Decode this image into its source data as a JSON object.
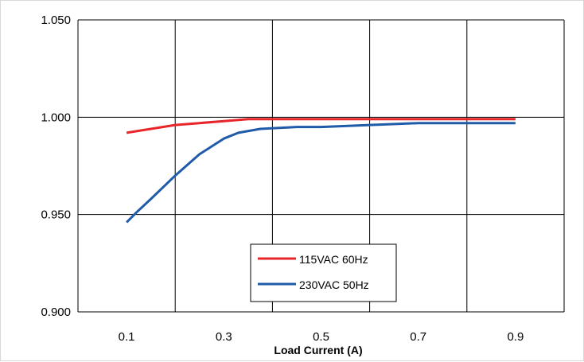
{
  "chart_data": {
    "type": "line",
    "title": "",
    "xlabel": "Load Current (A)",
    "ylabel": "",
    "xlim": [
      0,
      1.0
    ],
    "ylim": [
      0.9,
      1.05
    ],
    "x_ticks": [
      0.1,
      0.3,
      0.5,
      0.7,
      0.9
    ],
    "x_tick_labels": [
      "0.1",
      "0.3",
      "0.5",
      "0.7",
      "0.9"
    ],
    "x_gridlines": [
      0.2,
      0.4,
      0.6,
      0.8
    ],
    "y_ticks": [
      0.9,
      0.95,
      1.0,
      1.05
    ],
    "y_tick_labels": [
      "0.900",
      "0.950",
      "1.000",
      "1.050"
    ],
    "grid": true,
    "legend_position": "center-bottom",
    "series": [
      {
        "name": "115VAC 60Hz",
        "color": "#e8262a",
        "x": [
          0.1,
          0.15,
          0.2,
          0.25,
          0.3,
          0.35,
          0.4,
          0.5,
          0.6,
          0.7,
          0.8,
          0.9
        ],
        "y": [
          0.992,
          0.994,
          0.996,
          0.997,
          0.998,
          0.999,
          0.999,
          0.999,
          0.999,
          0.999,
          0.999,
          0.999
        ]
      },
      {
        "name": "230VAC 50Hz",
        "color": "#1f5ba8",
        "x": [
          0.1,
          0.12,
          0.15,
          0.2,
          0.25,
          0.3,
          0.33,
          0.375,
          0.45,
          0.5,
          0.6,
          0.7,
          0.8,
          0.9
        ],
        "y": [
          0.946,
          0.951,
          0.958,
          0.97,
          0.981,
          0.989,
          0.992,
          0.994,
          0.995,
          0.995,
          0.996,
          0.997,
          0.997,
          0.997
        ]
      }
    ]
  }
}
